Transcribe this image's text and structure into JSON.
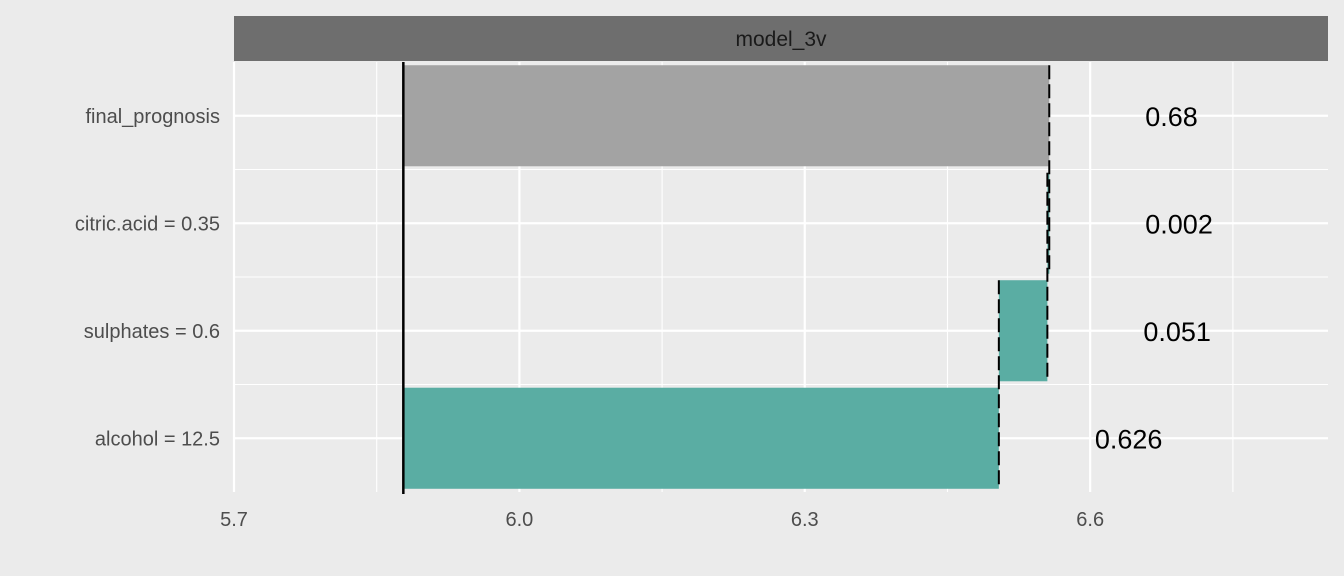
{
  "chart_data": {
    "type": "waterfall-bar",
    "facet_title": "model_3v",
    "xlim": [
      5.7,
      6.85
    ],
    "x_ticks": [
      5.7,
      6.0,
      6.3,
      6.6
    ],
    "x_tick_labels": [
      "5.7",
      "6.0",
      "6.3",
      "6.6"
    ],
    "intercept": 5.878,
    "rows": [
      {
        "label": "final_prognosis",
        "start": 5.878,
        "end": 6.557,
        "value_label": "0.68",
        "kind": "prediction",
        "color": "#a3a3a3"
      },
      {
        "label": "citric.acid = 0.35",
        "start": 6.555,
        "end": 6.557,
        "value_label": "0.002",
        "kind": "contribution",
        "color": "#5aada3"
      },
      {
        "label": "sulphates = 0.6",
        "start": 6.504,
        "end": 6.555,
        "value_label": "0.051",
        "kind": "contribution",
        "color": "#5aada3"
      },
      {
        "label": "alcohol = 12.5",
        "start": 5.878,
        "end": 6.504,
        "value_label": "0.626",
        "kind": "contribution",
        "color": "#5aada3"
      }
    ]
  },
  "colors": {
    "panel_background": "#ebebeb",
    "grid": "#ffffff",
    "strip_background": "#6e6e6e"
  }
}
